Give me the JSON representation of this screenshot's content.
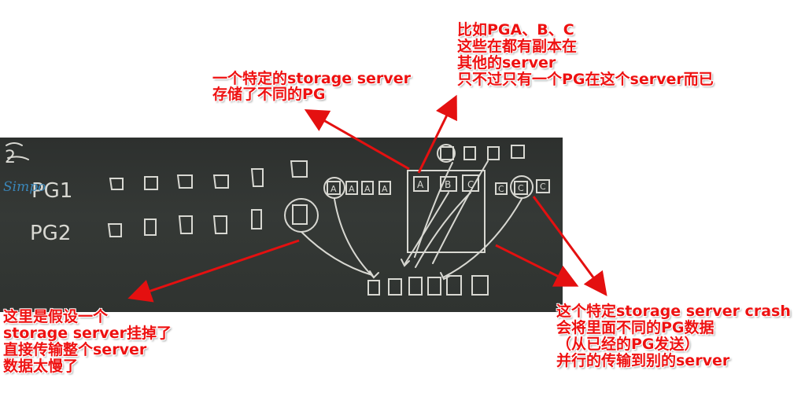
{
  "blackboard": {
    "pg_rows": [
      "PG1",
      "PG2"
    ],
    "watermark": "Simpo",
    "corner_mark": "2",
    "chalk_letters": [
      "A",
      "A",
      "A",
      "A",
      "A",
      "B",
      "C",
      "C",
      "C",
      "C"
    ]
  },
  "annotations": {
    "top_left": [
      "一个特定的storage server",
      "存储了不同的PG"
    ],
    "top_right": [
      "比如PGA、B、C",
      "这些在都有副本在",
      "其他的server",
      "只不过只有一个PG在这个server而已"
    ],
    "bottom_left": [
      "这里是假设一个",
      "storage server挂掉了",
      "直接传输整个server",
      "数据太慢了"
    ],
    "bottom_right": [
      "这个特定storage server crash",
      "会将里面不同的PG数据",
      "（从已经的PG发送）",
      "并行的传输到别的server"
    ]
  },
  "colors": {
    "annotation_text": "#ee1111",
    "arrow": "#e41010",
    "board": "#323633",
    "chalk": "#d8d8d2"
  }
}
